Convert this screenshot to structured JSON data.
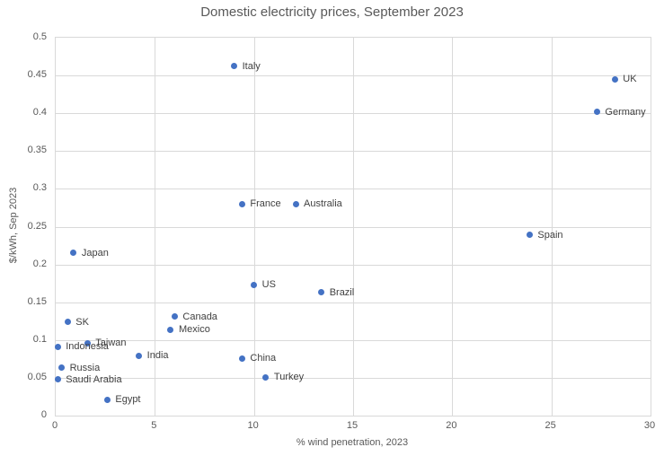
{
  "title": "Domestic electricity prices, September 2023",
  "chart_data": {
    "type": "scatter",
    "title": "Domestic electricity prices, September 2023",
    "xlabel": "% wind penetration, 2023",
    "ylabel": "$/kWh, Sep 2023",
    "xlim": [
      0,
      30
    ],
    "ylim": [
      0,
      0.5
    ],
    "x_ticks": [
      "0",
      "5",
      "10",
      "15",
      "20",
      "25",
      "30"
    ],
    "y_ticks": [
      "0",
      "0.05",
      "0.1",
      "0.15",
      "0.2",
      "0.25",
      "0.3",
      "0.35",
      "0.4",
      "0.45",
      "0.5"
    ],
    "grid": true,
    "legend": "none",
    "marker_color": "#4472c4",
    "points": [
      {
        "label": "Italy",
        "x": 9.0,
        "y": 0.462
      },
      {
        "label": "UK",
        "x": 28.2,
        "y": 0.445
      },
      {
        "label": "Germany",
        "x": 27.3,
        "y": 0.402
      },
      {
        "label": "France",
        "x": 9.4,
        "y": 0.28
      },
      {
        "label": "Australia",
        "x": 12.1,
        "y": 0.28
      },
      {
        "label": "Spain",
        "x": 23.9,
        "y": 0.239
      },
      {
        "label": "Japan",
        "x": 0.9,
        "y": 0.215
      },
      {
        "label": "US",
        "x": 10.0,
        "y": 0.173
      },
      {
        "label": "Brazil",
        "x": 13.4,
        "y": 0.163
      },
      {
        "label": "Canada",
        "x": 6.0,
        "y": 0.131
      },
      {
        "label": "SK",
        "x": 0.6,
        "y": 0.124
      },
      {
        "label": "Mexico",
        "x": 5.8,
        "y": 0.114
      },
      {
        "label": "Taiwan",
        "x": 1.6,
        "y": 0.096
      },
      {
        "label": "Indonesia",
        "x": 0.1,
        "y": 0.091
      },
      {
        "label": "India",
        "x": 4.2,
        "y": 0.079
      },
      {
        "label": "China",
        "x": 9.4,
        "y": 0.076
      },
      {
        "label": "Russia",
        "x": 0.3,
        "y": 0.063
      },
      {
        "label": "Turkey",
        "x": 10.6,
        "y": 0.051
      },
      {
        "label": "Saudi Arabia",
        "x": 0.1,
        "y": 0.048
      },
      {
        "label": "Egypt",
        "x": 2.6,
        "y": 0.021
      }
    ]
  },
  "colors": {
    "marker": "#4472c4",
    "gridline": "#d9d9d9",
    "axis_text": "#595959",
    "label_text": "#404040",
    "background": "#ffffff"
  }
}
